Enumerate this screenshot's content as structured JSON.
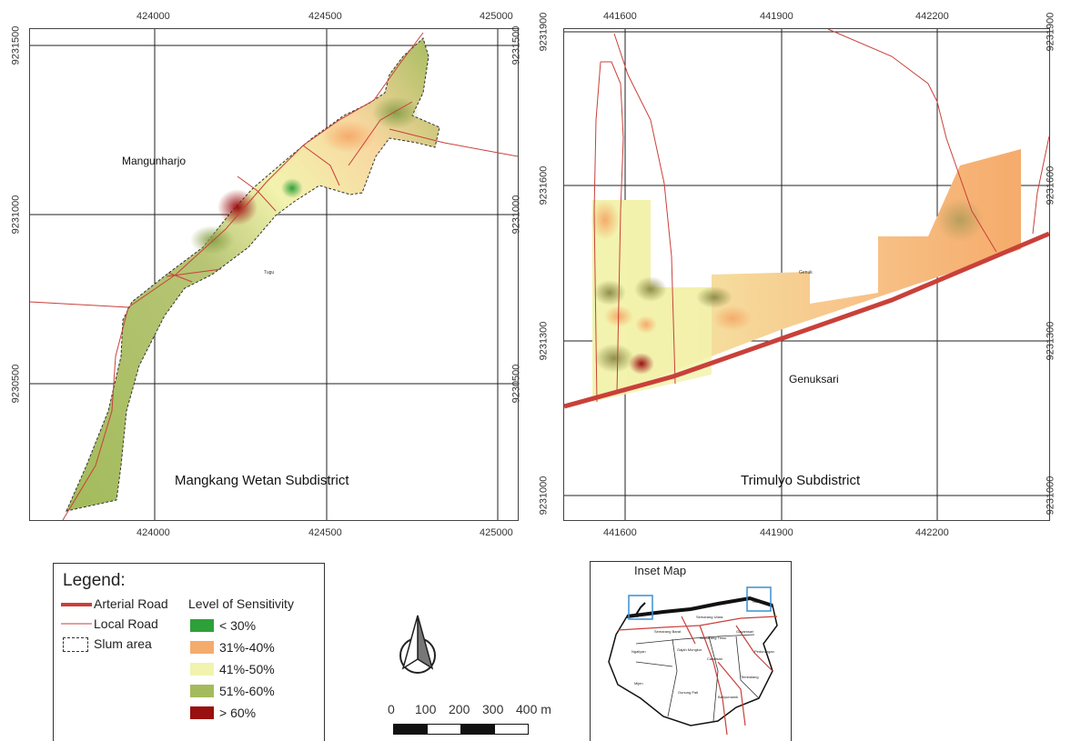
{
  "left_map": {
    "x_ticks": [
      "424000",
      "424500",
      "425000"
    ],
    "y_ticks": [
      "9231500",
      "9231000",
      "9230500"
    ],
    "labels": {
      "village_north": "Mangunharjo",
      "village_center": "Tugu",
      "subdistrict": "Mangkang Wetan Subdistrict"
    }
  },
  "right_map": {
    "x_ticks": [
      "441600",
      "441900",
      "442200"
    ],
    "y_ticks": [
      "9231900",
      "9231600",
      "9231300",
      "9231000"
    ],
    "labels": {
      "village_small": "Genuk",
      "village_south": "Genuksari",
      "subdistrict": "Trimulyo Subdistrict"
    }
  },
  "legend": {
    "title": "Legend:",
    "arterial_road": "Arterial Road",
    "local_road": "Local Road",
    "slum_area": "Slum  area",
    "sensitivity_title": "Level of Sensitivity",
    "classes": [
      {
        "label": "< 30%",
        "color": "#2ea03a"
      },
      {
        "label": "31%-40%",
        "color": "#f5ab6b"
      },
      {
        "label": "41%-50%",
        "color": "#f2f3ae"
      },
      {
        "label": "51%-60%",
        "color": "#a3bb5c"
      },
      {
        "label": "> 60%",
        "color": "#9a0f0f"
      }
    ],
    "arterial_color": "#c9403a",
    "local_color": "#c9403a"
  },
  "scale_bar": {
    "labels": [
      "0",
      "100",
      "200",
      "300",
      "400 m"
    ]
  },
  "north_arrow": {
    "icon": "north-arrow-icon"
  },
  "inset_map": {
    "title": "Inset Map",
    "districts": [
      "Tugu",
      "Semarang Barat",
      "Semarang Utara",
      "Semarang Timur",
      "Genuk",
      "Gayamsari",
      "Pedurungan",
      "Ngaliyan",
      "Gajah Mungkur",
      "Candisari",
      "Mijen",
      "Gunung Pati",
      "Banyumanik",
      "Tembalang"
    ]
  }
}
